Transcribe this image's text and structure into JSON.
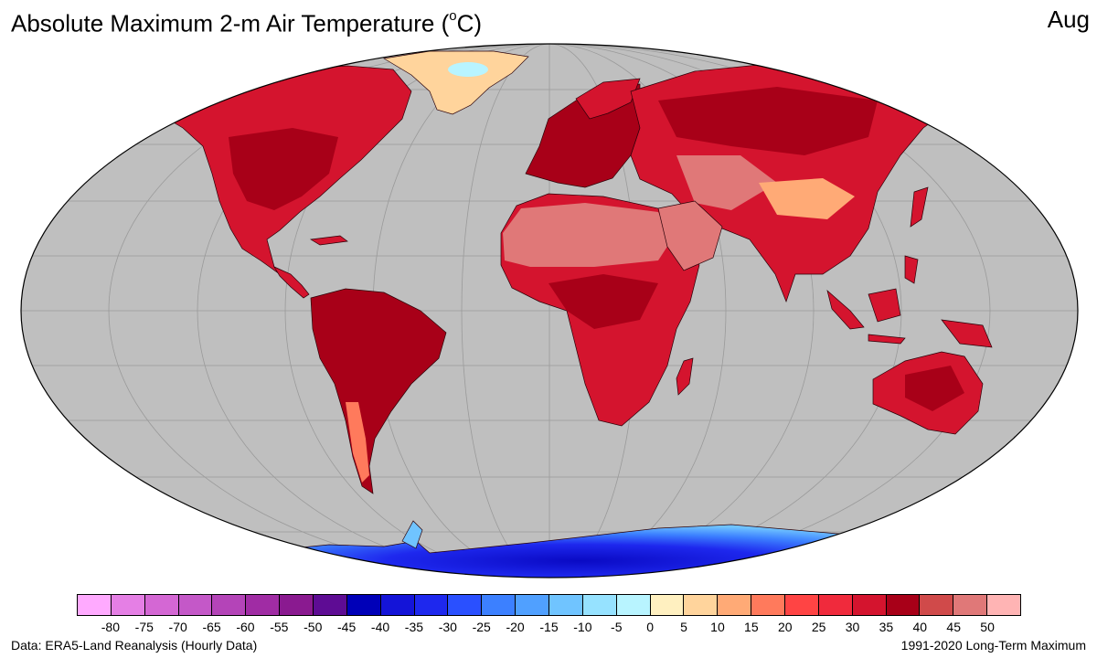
{
  "title": {
    "prefix": "Absolute Maximum 2-m Air Temperature (",
    "degree": "o",
    "suffix": "C)"
  },
  "month": "Aug",
  "footer": {
    "source": "Data: ERA5-Land Reanalysis (Hourly Data)",
    "period": "1991-2020 Long-Term Maximum"
  },
  "colorbar": {
    "ticks": [
      "-80",
      "-75",
      "-70",
      "-65",
      "-60",
      "-55",
      "-50",
      "-45",
      "-40",
      "-35",
      "-30",
      "-25",
      "-20",
      "-15",
      "-10",
      "-5",
      "0",
      "5",
      "10",
      "15",
      "20",
      "25",
      "30",
      "35",
      "40",
      "45",
      "50"
    ],
    "colors": [
      "#ffaaff",
      "#e57fe5",
      "#d467d4",
      "#c458c8",
      "#b444b8",
      "#a02ca4",
      "#8a1a90",
      "#5e0c94",
      "#0000b8",
      "#1414d8",
      "#1e28ee",
      "#2a50ff",
      "#3c80ff",
      "#50a0ff",
      "#70c4ff",
      "#96e2ff",
      "#b8f4ff",
      "#fff0c0",
      "#ffd49c",
      "#ffaa76",
      "#ff7a5c",
      "#ff4444",
      "#f02a3c",
      "#d4142e",
      "#a80018",
      "#d04a4a",
      "#e07878",
      "#ffb4b4"
    ]
  },
  "colors": {
    "ocean": "#bfbfbf",
    "graticule": "#9a9a9a",
    "coast": "#2a0008",
    "land_hot": "#d4142e",
    "land_very_hot": "#a80018",
    "desert": "#e07878",
    "greenland": "#ffd49c",
    "antarctica": "#2a50ff"
  }
}
